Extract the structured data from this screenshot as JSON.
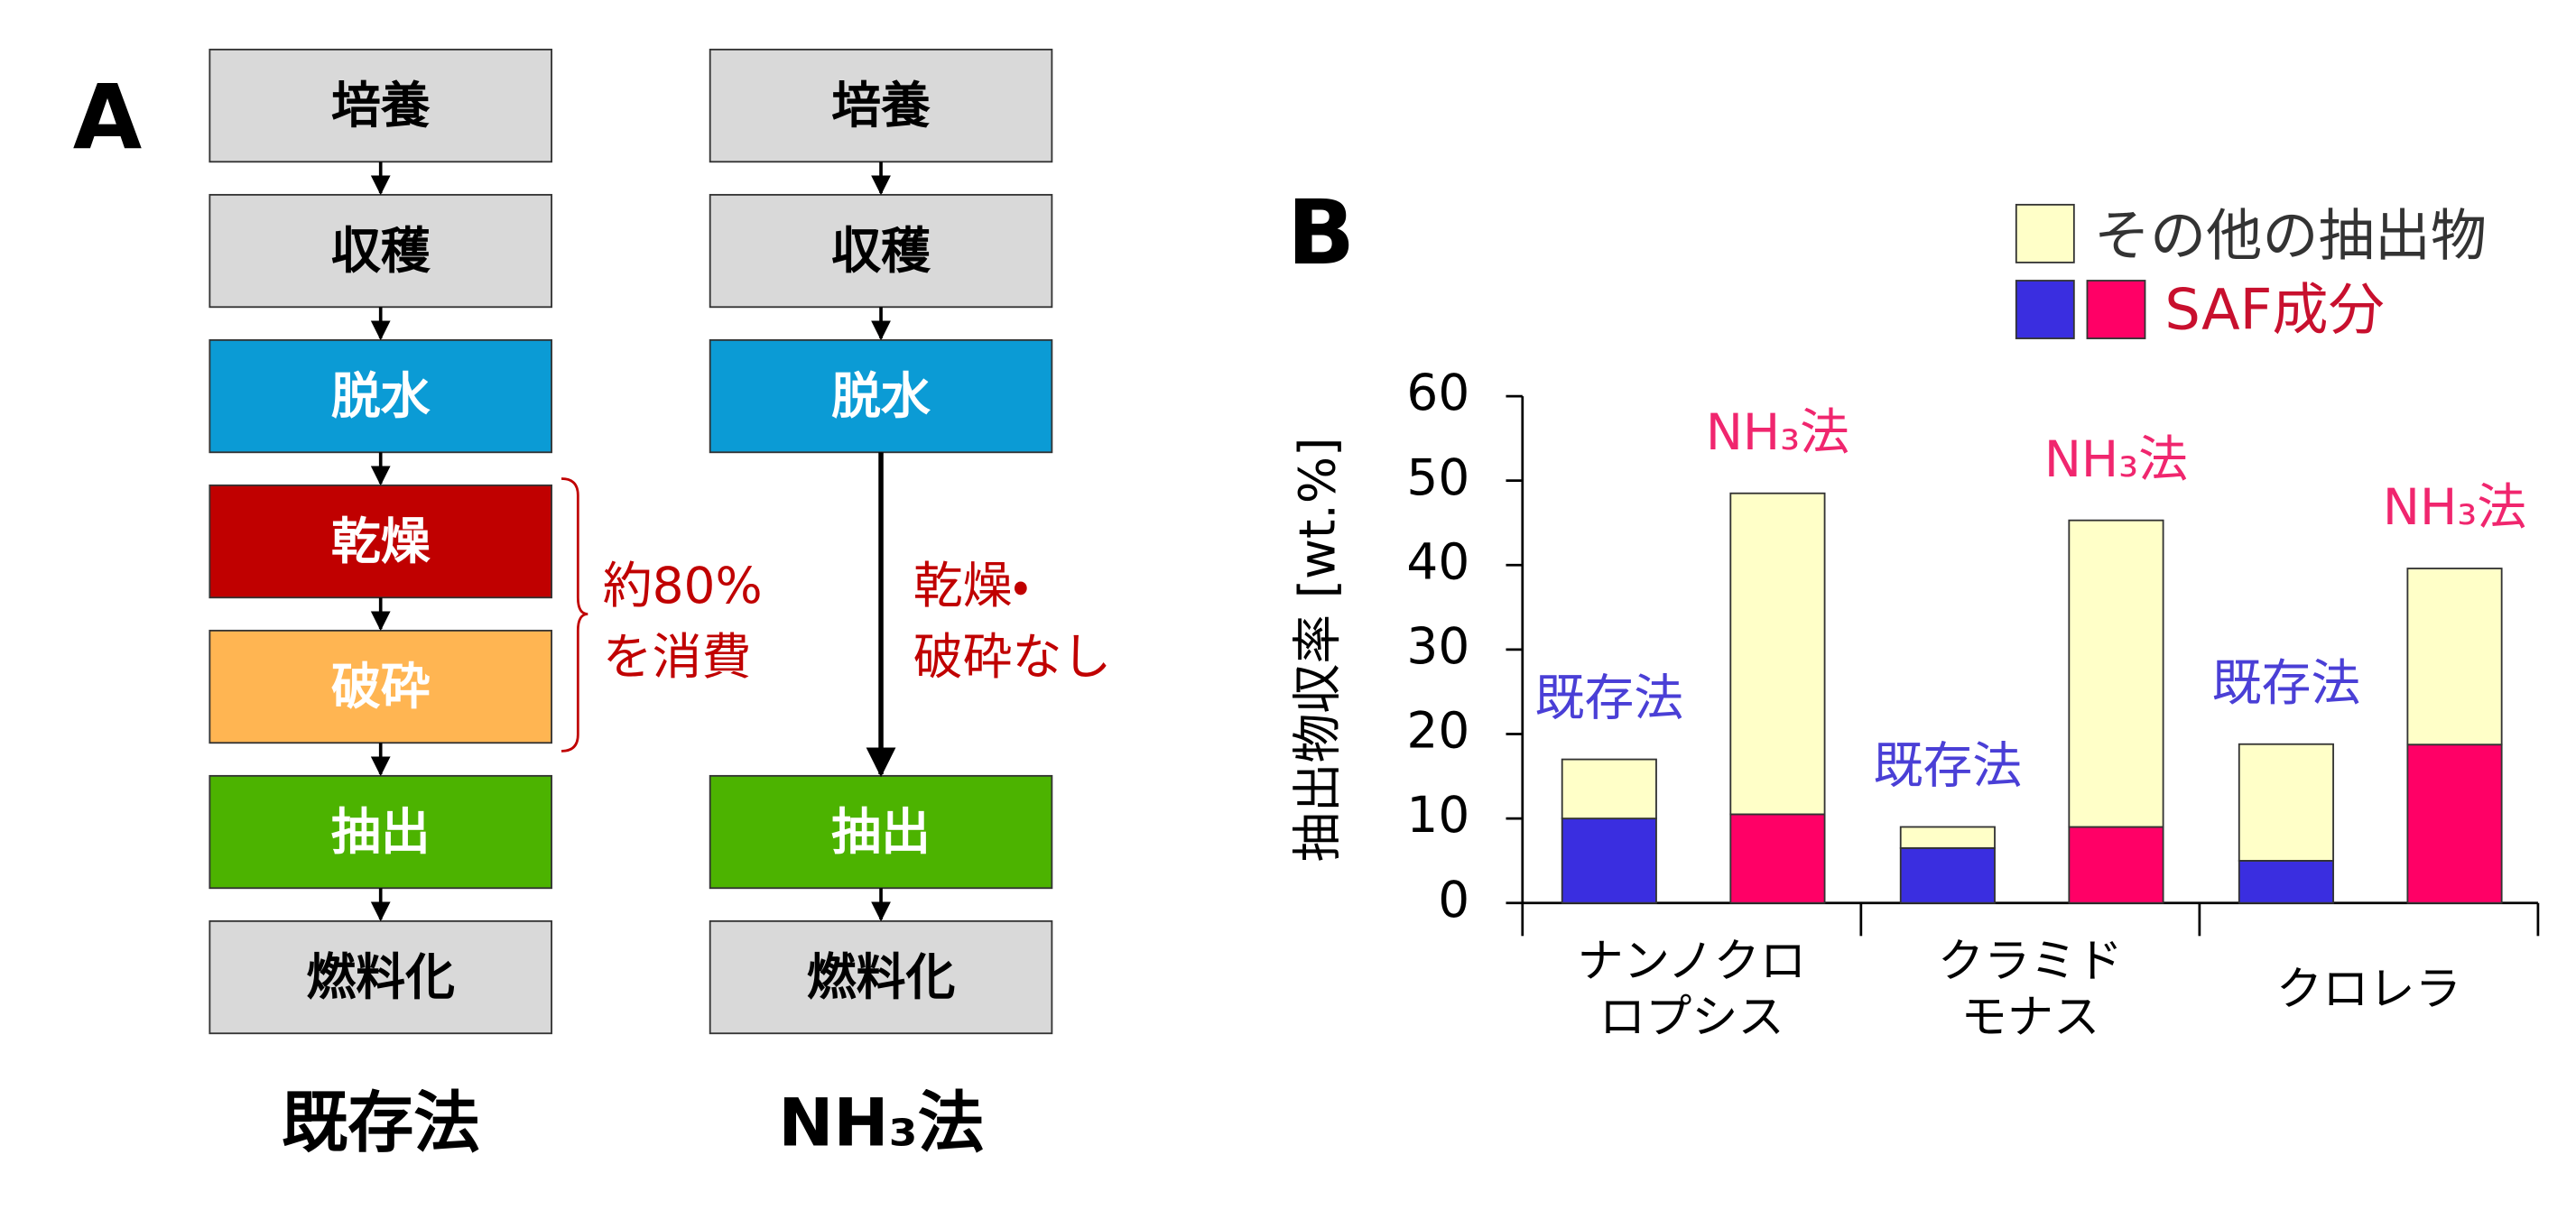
{
  "panel_a": {
    "label": "A",
    "columns": [
      {
        "title": "既存法",
        "steps": [
          {
            "text": "培養",
            "fill": "#d9d9d9"
          },
          {
            "text": "収穫",
            "fill": "#d9d9d9"
          },
          {
            "text": "脱水",
            "fill": "#0b9bd5"
          },
          {
            "text": "乾燥",
            "fill": "#c00000"
          },
          {
            "text": "破砕",
            "fill": "#ffb552"
          },
          {
            "text": "抽出",
            "fill": "#4cb300"
          },
          {
            "text": "燃料化",
            "fill": "#d9d9d9"
          }
        ],
        "note": [
          "約80%",
          "を消費"
        ]
      },
      {
        "title": "NH₃法",
        "steps": [
          {
            "text": "培養",
            "fill": "#d9d9d9"
          },
          {
            "text": "収穫",
            "fill": "#d9d9d9"
          },
          {
            "text": "脱水",
            "fill": "#0b9bd5"
          },
          {
            "text": "抽出",
            "fill": "#4cb300"
          },
          {
            "text": "燃料化",
            "fill": "#d9d9d9"
          }
        ],
        "note": [
          "乾燥・",
          "破砕なし"
        ]
      }
    ]
  },
  "chart_data": {
    "type": "stacked-bar",
    "panel_label": "B",
    "y_label": "抽出物収率 [wt.%]",
    "categories": [
      [
        "ナンノクロ",
        "ロプシス"
      ],
      [
        "クラミド",
        "モナス"
      ],
      [
        "クロレラ"
      ]
    ],
    "ylim": [
      0,
      60
    ],
    "yticks": [
      0,
      10,
      20,
      30,
      40,
      50,
      60
    ],
    "legend": {
      "other": "その他の抽出物",
      "saf": "SAF成分"
    },
    "other_color": "#ffffc8",
    "series": [
      {
        "name": "既存法",
        "color": "#3a2ee0",
        "label_color": "#4a3fd6",
        "saf": [
          10,
          6.5,
          5
        ],
        "other": [
          7,
          2.5,
          13.8
        ]
      },
      {
        "name": "NH₃法",
        "color": "#ff0066",
        "label_color": "#f0266e",
        "saf": [
          10.5,
          9,
          18.75
        ],
        "other": [
          38,
          36.3,
          20.85
        ]
      }
    ]
  }
}
